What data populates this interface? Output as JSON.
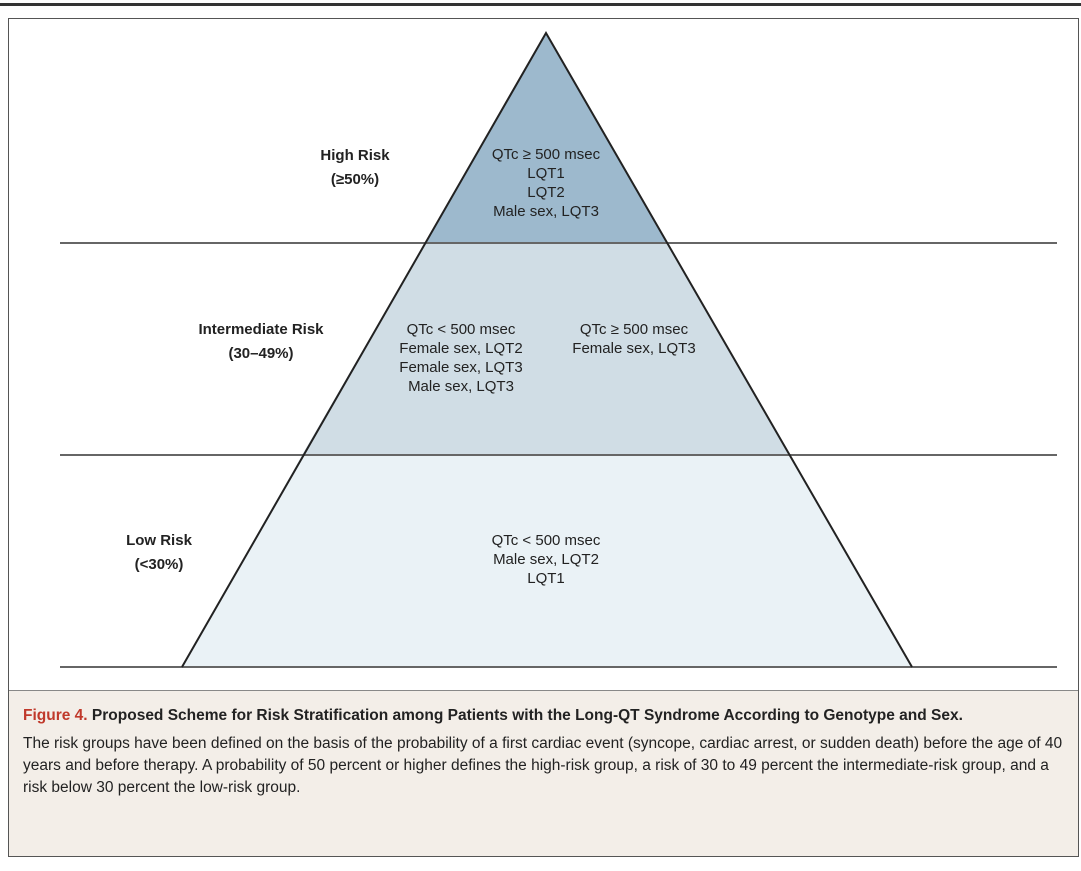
{
  "levels": [
    {
      "label": "High Risk",
      "range": "(≥50%)",
      "groups": [
        [
          "QTc ≥ 500 msec",
          "LQT1",
          "LQT2",
          "Male sex, LQT3"
        ]
      ]
    },
    {
      "label": "Intermediate Risk",
      "range": "(30–49%)",
      "groups": [
        [
          "QTc < 500 msec",
          "Female sex, LQT2",
          "Female sex, LQT3",
          "Male sex, LQT3"
        ],
        [
          "QTc ≥ 500 msec",
          "Female sex, LQT3"
        ]
      ]
    },
    {
      "label": "Low Risk",
      "range": "(<30%)",
      "groups": [
        [
          "QTc < 500 msec",
          "Male sex, LQT2",
          "LQT1"
        ]
      ]
    }
  ],
  "caption": {
    "figure": "Figure 4.",
    "title": "Proposed Scheme for Risk Stratification among Patients with the Long-QT Syndrome According to Genotype and Sex.",
    "body": "The risk groups have been defined on the basis of the probability of a first cardiac event (syncope, cardiac arrest, or sudden death) before the age of 40 years and before therapy. A probability of 50 percent or higher defines the high-risk group, a risk of 30 to 49 percent the intermediate-risk group, and a risk below 30 percent the low-risk group."
  }
}
